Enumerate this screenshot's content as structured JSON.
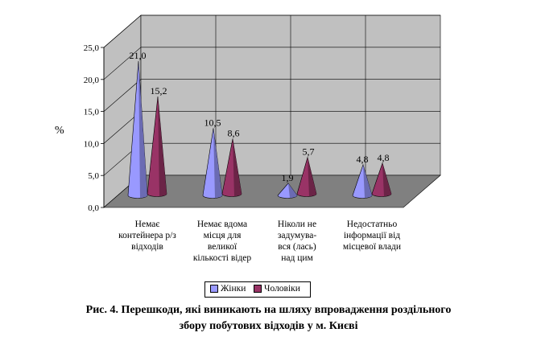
{
  "chart_data": {
    "type": "bar",
    "bar_shape": "3d-cone",
    "categories": [
      [
        "Немає",
        "контейнера р/з",
        "відходів"
      ],
      [
        "Немає вдома",
        "місця для",
        "великої",
        "кількості відер"
      ],
      [
        "Ніколи не",
        "задумува-",
        "вся (лась)",
        "над цим"
      ],
      [
        "Недостатньо",
        "інформації від",
        "місцевої влади"
      ]
    ],
    "series": [
      {
        "name": "Жінки",
        "values": [
          21.0,
          10.5,
          1.9,
          4.8
        ],
        "labels": [
          "21,0",
          "10,5",
          "1,9",
          "4,8"
        ],
        "color": "#9999ff"
      },
      {
        "name": "Чоловіки",
        "values": [
          15.2,
          8.6,
          5.7,
          4.8
        ],
        "labels": [
          "15,2",
          "8,6",
          "5,7",
          "4,8"
        ],
        "color": "#993366"
      }
    ],
    "ylabel": "%",
    "ylim": [
      0,
      25
    ],
    "yticks": [
      "0,0",
      "5,0",
      "10,0",
      "15,0",
      "20,0",
      "25,0"
    ],
    "grid": true,
    "legend_position": "bottom",
    "wall_color": "#c0c0c0",
    "floor_color": "#808080"
  },
  "caption": {
    "line1": "Рис. 4. Перешкоди, які виникають на шляху впровадження роздільного",
    "line2": "збору побутових відходів у м. Києві"
  }
}
